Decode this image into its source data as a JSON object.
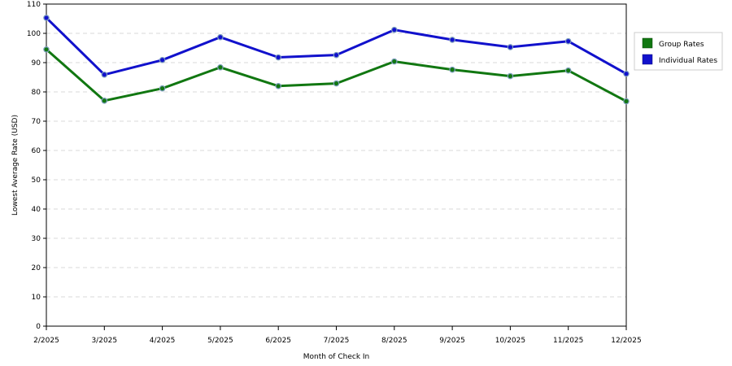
{
  "chart_data": {
    "type": "line",
    "title": "",
    "xlabel": "Month of Check In",
    "ylabel": "Lowest Average Rate (USD)",
    "categories": [
      "2/2025",
      "3/2025",
      "4/2025",
      "5/2025",
      "6/2025",
      "7/2025",
      "8/2025",
      "9/2025",
      "10/2025",
      "11/2025",
      "12/2025"
    ],
    "yticks": [
      "0",
      "10",
      "20",
      "30",
      "40",
      "50",
      "60",
      "70",
      "80",
      "90",
      "100",
      "110"
    ],
    "ylim": [
      0,
      110
    ],
    "grid": "horizontal dashed",
    "legend_position": "right",
    "series": [
      {
        "name": "Group Rates",
        "color": "#117711",
        "values": [
          94.5,
          77,
          81.2,
          88.4,
          82,
          82.9,
          90.4,
          87.6,
          85.4,
          87.3,
          76.8
        ]
      },
      {
        "name": "Individual Rates",
        "color": "#1111cc",
        "values": [
          105.3,
          85.9,
          90.9,
          98.7,
          91.8,
          92.6,
          101.2,
          97.8,
          95.3,
          97.3,
          86.2
        ]
      }
    ]
  }
}
